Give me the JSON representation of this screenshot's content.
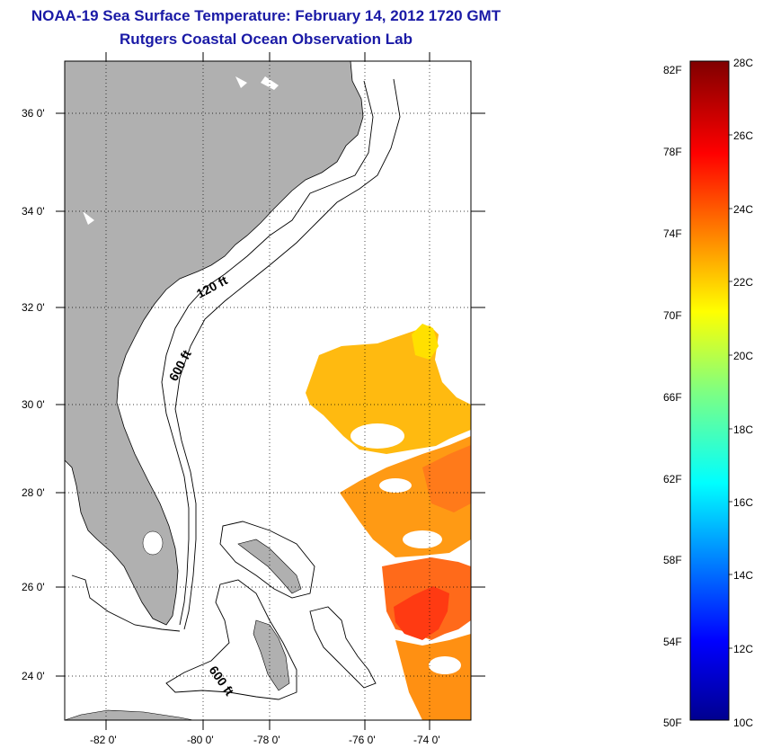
{
  "title": "NOAA-19 Sea Surface Temperature:  February 14, 2012 1720 GMT",
  "subtitle": "Rutgers Coastal Ocean Observation Lab",
  "map": {
    "lat_ticks": [
      "36 0'",
      "34 0'",
      "32 0'",
      "30 0'",
      "28 0'",
      "26 0'",
      "24 0'"
    ],
    "lon_ticks": [
      "-82 0'",
      "-80 0'",
      "-78 0'",
      "-76 0'",
      "-74 0'"
    ],
    "contour_labels": [
      "120 ft",
      "600 ft",
      "600 ft"
    ],
    "land_color": "#b0b0b0"
  },
  "colorbar": {
    "f_labels": [
      "82F",
      "78F",
      "74F",
      "70F",
      "66F",
      "62F",
      "58F",
      "54F",
      "50F"
    ],
    "c_labels": [
      "28C",
      "26C",
      "24C",
      "22C",
      "20C",
      "18C",
      "16C",
      "14C",
      "12C",
      "10C"
    ],
    "min_c": 10,
    "max_c": 28
  }
}
